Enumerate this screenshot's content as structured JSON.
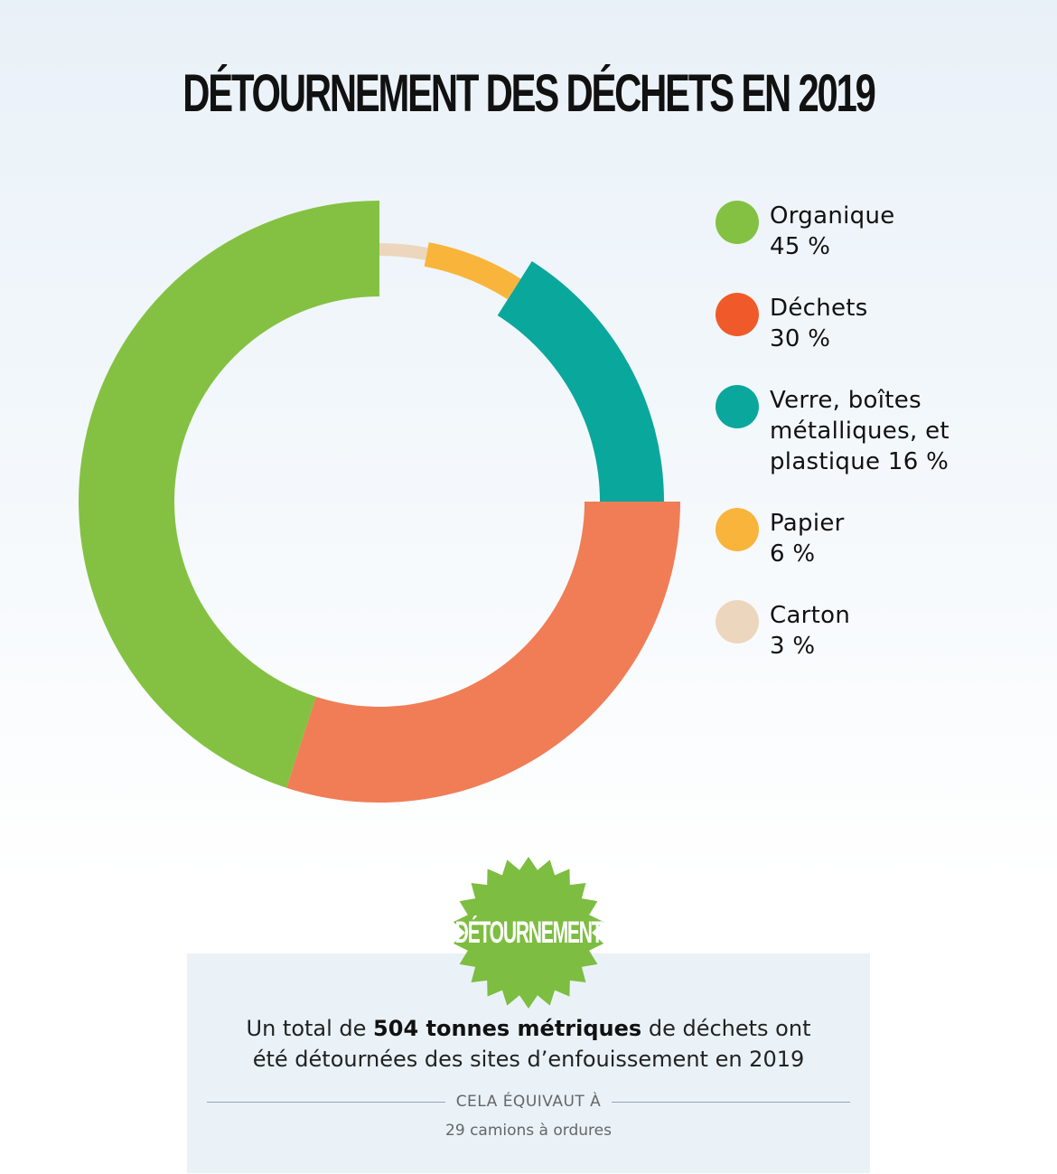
{
  "title": "DÉTOURNEMENT DES DÉCHETS EN 2019",
  "chart_data": {
    "type": "pie",
    "variant": "donut",
    "categories": [
      "Organique",
      "Déchets",
      "Verre, boîtes métalliques, et plastique",
      "Papier",
      "Carton"
    ],
    "values": [
      45,
      30,
      16,
      6,
      3
    ],
    "unit": "%",
    "colors": [
      "#84c142",
      "#f07d56",
      "#0aa79c",
      "#f9b43c",
      "#ecd6bd"
    ],
    "legend_position": "right"
  },
  "legend": [
    {
      "label": "Organique",
      "value": "45 %",
      "color": "#84c142"
    },
    {
      "label": "Déchets",
      "value": "30 %",
      "color": "#f05a2a"
    },
    {
      "label_lines": [
        "Verre, boîtes",
        "métalliques, et",
        "plastique"
      ],
      "value": "16 %",
      "color": "#0aa79c"
    },
    {
      "label": "Papier",
      "value": "6 %",
      "color": "#f9b43c"
    },
    {
      "label": "Carton",
      "value": "3 %",
      "color": "#ecd6bd"
    }
  ],
  "badge": {
    "text": "DÉTOURNEMENT",
    "color": "#7dbd41"
  },
  "summary": {
    "prefix": "Un total de ",
    "highlight": "504 tonnes métriques",
    "suffix_line1": " de déchets ont",
    "line2": "été détournées des sites d’enfouissement en 2019",
    "equiv_label": "CELA ÉQUIVAUT À",
    "equiv_value": "29 camions à ordures"
  }
}
